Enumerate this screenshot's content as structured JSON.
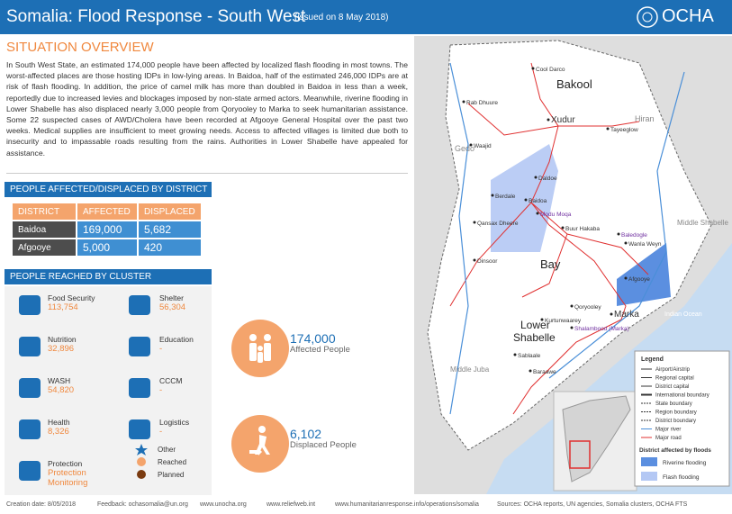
{
  "header": {
    "title": "Somalia: Flood Response - South West",
    "issued": "(issued on 8 May 2018)",
    "logo": "OCHA"
  },
  "situation": {
    "heading": "SITUATION OVERVIEW",
    "body": "In South West State, an estimated 174,000 people have been affected by localized flash flooding in most towns.  The worst-affected places are those hosting IDPs in low-lying areas. In Baidoa, half of the estimated 246,000 IDPs are at risk of flash flooding. In addition, the price of camel milk has more than doubled in Baidoa in less than a week, reportedly due to increased levies and blockages imposed by non-state armed actors. Meanwhile, riverine flooding in Lower Shabelle has also displaced nearly 3,000 people from Qoryooley to Marka to seek humanitarian assistance. Some 22 suspected cases of AWD/Cholera have been recorded at Afgooye General Hospital over the past two weeks. Medical supplies are insufficient to meet growing needs. Access to affected villages is limited due both to insecurity and to impassable roads resulting from the rains. Authorities in Lower Shabelle have appealed for assistance."
  },
  "district_table": {
    "heading": "PEOPLE AFFECTED/DISPLACED BY DISTRICT",
    "columns": [
      "DISTRICT",
      "AFFECTED",
      "DISPLACED"
    ],
    "rows": [
      [
        "Baidoa",
        "169,000",
        "5,682"
      ],
      [
        "Afgooye",
        "5,000",
        "420"
      ]
    ]
  },
  "clusters": {
    "heading": "PEOPLE REACHED BY CLUSTER",
    "items": [
      {
        "name": "Food Security",
        "value": "113,754"
      },
      {
        "name": "Shelter",
        "value": "56,304"
      },
      {
        "name": "Nutrition",
        "value": "32,896"
      },
      {
        "name": "Education",
        "value": "-"
      },
      {
        "name": "WASH",
        "value": "54,820"
      },
      {
        "name": "CCCM",
        "value": "-"
      },
      {
        "name": "Health",
        "value": "8,326"
      },
      {
        "name": "Logistics",
        "value": "-"
      },
      {
        "name": "Protection",
        "value": "Protection Monitoring"
      }
    ],
    "legend": [
      "Other",
      "Reached",
      "Planned"
    ]
  },
  "key_figures": [
    {
      "value": "174,000",
      "label": "Affected People"
    },
    {
      "value": "6,102",
      "label": "Displaced People"
    }
  ],
  "map": {
    "regions": [
      "Bakool",
      "Gedo",
      "Hiran",
      "Middle Shabelle",
      "Bay",
      "Lower Shabelle",
      "Middle Juba",
      "Indian Ocean"
    ],
    "places": [
      "Cool Darco",
      "Rab Dhuure",
      "Xudur",
      "Tayeeglow",
      "Waajid",
      "Daldoe",
      "Berdale",
      "Baidoa",
      "Modu Moqa",
      "Qansax Dheere",
      "Buur Hakaba",
      "Baledogle",
      "Wanla Weyn",
      "Dinsoor",
      "Afgooye",
      "Qoryooley",
      "Marka",
      "Kurtunwaarey",
      "Shalambood (Marka)",
      "Sablaale",
      "Baraawe",
      "Mogadishu"
    ],
    "legend": {
      "title": "Legend",
      "items": [
        "Airport/Airstrip",
        "Regional capital",
        "District capital",
        "International boundary",
        "State boundary",
        "Region boundary",
        "District boundary",
        "Major river",
        "Major road"
      ],
      "floods_title": "District affected by floods",
      "floods": [
        "Riverine flooding",
        "Flash flooding"
      ]
    }
  },
  "footer": [
    "Creation date: 8/05/2018",
    "Feedback: ochasomalia@un.org",
    "www.unocha.org",
    "www.reliefweb.int",
    "www.humanitarianresponse.info/operations/somalia",
    "Sources: OCHA reports, UN agencies,  Somalia clusters,  OCHA FTS"
  ]
}
